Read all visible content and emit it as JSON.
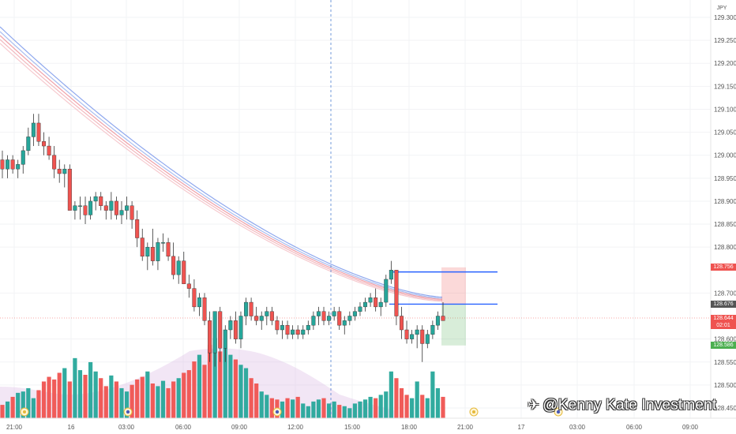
{
  "chart_data": {
    "type": "candlestick",
    "currency_label": "JPY",
    "price_axis": {
      "ticks": [
        "129.300",
        "129.250",
        "129.200",
        "129.150",
        "129.100",
        "129.050",
        "129.000",
        "128.950",
        "128.900",
        "128.850",
        "128.800",
        "128.700",
        "128.600",
        "128.550",
        "128.500",
        "128.450"
      ],
      "range": [
        128.43,
        129.33
      ]
    },
    "time_axis": {
      "ticks": [
        "21:00",
        "16",
        "03:00",
        "06:00",
        "09:00",
        "12:00",
        "15:00",
        "18:00",
        "21:00",
        "17",
        "03:00",
        "06:00",
        "09:00"
      ]
    },
    "price_labels": {
      "stop": {
        "value": "128.756",
        "color": "#ef5350"
      },
      "current": {
        "value": "128.676",
        "color": "#555555"
      },
      "last": {
        "value": "128.644",
        "countdown": "02:01",
        "color": "#ef5350"
      },
      "target": {
        "value": "128.586",
        "color": "#4caf50"
      }
    },
    "candles": [
      [
        128.99,
        129.01,
        128.95,
        128.97
      ],
      [
        128.97,
        129.0,
        128.95,
        128.99
      ],
      [
        128.99,
        129.0,
        128.96,
        128.97
      ],
      [
        128.97,
        128.99,
        128.95,
        128.98
      ],
      [
        128.98,
        129.02,
        128.96,
        129.01
      ],
      [
        129.01,
        129.06,
        129.0,
        129.04
      ],
      [
        129.04,
        129.09,
        129.02,
        129.07
      ],
      [
        129.07,
        129.09,
        129.02,
        129.03
      ],
      [
        129.03,
        129.05,
        129.0,
        129.02
      ],
      [
        129.02,
        129.04,
        128.99,
        129.0
      ],
      [
        129.0,
        129.02,
        128.95,
        128.97
      ],
      [
        128.97,
        128.99,
        128.94,
        128.96
      ],
      [
        128.96,
        128.98,
        128.93,
        128.97
      ],
      [
        128.97,
        128.98,
        128.88,
        128.88
      ],
      [
        128.88,
        128.9,
        128.86,
        128.89
      ],
      [
        128.89,
        128.91,
        128.86,
        128.89
      ],
      [
        128.89,
        128.91,
        128.85,
        128.87
      ],
      [
        128.87,
        128.91,
        128.86,
        128.9
      ],
      [
        128.9,
        128.92,
        128.88,
        128.91
      ],
      [
        128.91,
        128.92,
        128.88,
        128.89
      ],
      [
        128.89,
        128.9,
        128.86,
        128.88
      ],
      [
        128.88,
        128.92,
        128.86,
        128.9
      ],
      [
        128.9,
        128.91,
        128.86,
        128.87
      ],
      [
        128.87,
        128.9,
        128.85,
        128.88
      ],
      [
        128.88,
        128.91,
        128.86,
        128.89
      ],
      [
        128.89,
        128.9,
        128.84,
        128.86
      ],
      [
        128.86,
        128.88,
        128.8,
        128.82
      ],
      [
        128.82,
        128.84,
        128.77,
        128.78
      ],
      [
        128.78,
        128.81,
        128.75,
        128.8
      ],
      [
        128.8,
        128.84,
        128.76,
        128.77
      ],
      [
        128.77,
        128.82,
        128.75,
        128.81
      ],
      [
        128.81,
        128.83,
        128.79,
        128.81
      ],
      [
        128.81,
        128.82,
        128.77,
        128.78
      ],
      [
        128.78,
        128.81,
        128.73,
        128.74
      ],
      [
        128.74,
        128.78,
        128.72,
        128.77
      ],
      [
        128.77,
        128.79,
        128.72,
        128.72
      ],
      [
        128.72,
        128.74,
        128.69,
        128.71
      ],
      [
        128.71,
        128.73,
        128.66,
        128.67
      ],
      [
        128.67,
        128.7,
        128.65,
        128.69
      ],
      [
        128.69,
        128.7,
        128.63,
        128.64
      ],
      [
        128.64,
        128.66,
        128.55,
        128.57
      ],
      [
        128.57,
        128.66,
        128.54,
        128.66
      ],
      [
        128.66,
        128.67,
        128.55,
        128.58
      ],
      [
        128.58,
        128.63,
        128.55,
        128.62
      ],
      [
        128.62,
        128.65,
        128.6,
        128.64
      ],
      [
        128.64,
        128.66,
        128.59,
        128.6
      ],
      [
        128.6,
        128.66,
        128.58,
        128.65
      ],
      [
        128.65,
        128.69,
        128.63,
        128.68
      ],
      [
        128.68,
        128.69,
        128.64,
        128.65
      ],
      [
        128.65,
        128.67,
        128.63,
        128.64
      ],
      [
        128.64,
        128.66,
        128.62,
        128.65
      ],
      [
        128.65,
        128.67,
        128.63,
        128.66
      ],
      [
        128.66,
        128.67,
        128.63,
        128.64
      ],
      [
        128.64,
        128.65,
        128.61,
        128.62
      ],
      [
        128.62,
        128.64,
        128.6,
        128.63
      ],
      [
        128.63,
        128.64,
        128.6,
        128.61
      ],
      [
        128.61,
        128.63,
        128.6,
        128.62
      ],
      [
        128.62,
        128.63,
        128.6,
        128.61
      ],
      [
        128.61,
        128.63,
        128.6,
        128.62
      ],
      [
        128.62,
        128.64,
        128.61,
        128.63
      ],
      [
        128.63,
        128.66,
        128.62,
        128.65
      ],
      [
        128.65,
        128.67,
        128.63,
        128.66
      ],
      [
        128.66,
        128.67,
        128.63,
        128.64
      ],
      [
        128.64,
        128.66,
        128.63,
        128.65
      ],
      [
        128.65,
        128.67,
        128.64,
        128.66
      ],
      [
        128.66,
        128.67,
        128.62,
        128.63
      ],
      [
        128.63,
        128.65,
        128.61,
        128.64
      ],
      [
        128.64,
        128.66,
        128.63,
        128.65
      ],
      [
        128.65,
        128.67,
        128.64,
        128.66
      ],
      [
        128.66,
        128.68,
        128.65,
        128.67
      ],
      [
        128.67,
        128.69,
        128.66,
        128.68
      ],
      [
        128.68,
        128.7,
        128.67,
        128.69
      ],
      [
        128.69,
        128.71,
        128.66,
        128.67
      ],
      [
        128.67,
        128.69,
        128.65,
        128.68
      ],
      [
        128.68,
        128.74,
        128.67,
        128.73
      ],
      [
        128.73,
        128.77,
        128.72,
        128.75
      ],
      [
        128.75,
        128.75,
        128.63,
        128.65
      ],
      [
        128.65,
        128.67,
        128.6,
        128.62
      ],
      [
        128.62,
        128.64,
        128.59,
        128.6
      ],
      [
        128.6,
        128.62,
        128.59,
        128.61
      ],
      [
        128.61,
        128.63,
        128.58,
        128.62
      ],
      [
        128.62,
        128.63,
        128.55,
        128.59
      ],
      [
        128.59,
        128.62,
        128.58,
        128.61
      ],
      [
        128.61,
        128.64,
        128.6,
        128.63
      ],
      [
        128.63,
        128.66,
        128.62,
        128.65
      ],
      [
        128.65,
        128.68,
        128.64,
        128.64
      ]
    ],
    "volume": [
      20,
      25,
      32,
      38,
      40,
      45,
      30,
      42,
      55,
      62,
      58,
      68,
      75,
      55,
      90,
      72,
      65,
      84,
      70,
      60,
      48,
      64,
      55,
      45,
      40,
      50,
      58,
      62,
      70,
      52,
      48,
      56,
      45,
      55,
      60,
      68,
      72,
      85,
      95,
      80,
      110,
      120,
      100,
      105,
      95,
      88,
      80,
      75,
      60,
      52,
      40,
      35,
      30,
      28,
      25,
      30,
      28,
      32,
      22,
      18,
      25,
      28,
      30,
      22,
      25,
      20,
      18,
      15,
      22,
      25,
      28,
      32,
      30,
      35,
      40,
      70,
      60,
      45,
      35,
      30,
      55,
      35,
      30,
      70,
      45,
      32
    ],
    "position": {
      "entry": 128.676,
      "stop": 128.756,
      "target": 128.586
    },
    "watermark": "@Kenny Kate Investment"
  }
}
